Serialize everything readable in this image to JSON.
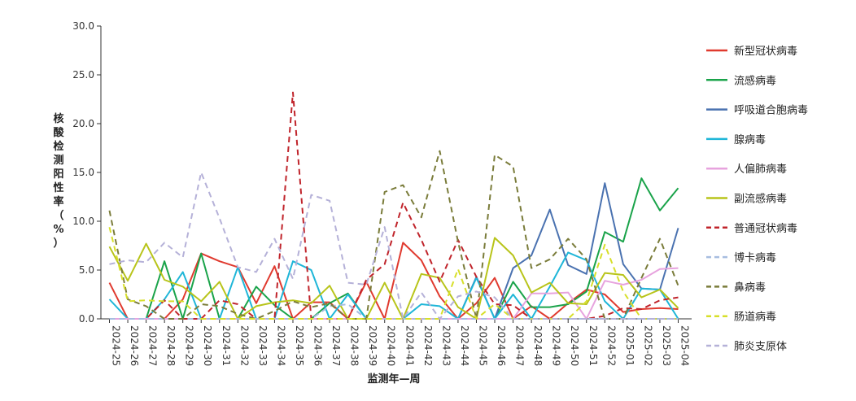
{
  "chart_data": {
    "type": "line",
    "title": "",
    "xlabel": "监测年—周",
    "ylabel": "核酸检测阳性率（%）",
    "ylim": [
      0,
      30
    ],
    "yticks": [
      "0.0",
      "5.0",
      "10.0",
      "15.0",
      "20.0",
      "25.0",
      "30.0"
    ],
    "grid": false,
    "legend_position": "right",
    "categories": [
      "2024-25",
      "2024-26",
      "2024-27",
      "2024-28",
      "2024-29",
      "2024-30",
      "2024-31",
      "2024-32",
      "2024-33",
      "2024-34",
      "2024-35",
      "2024-36",
      "2024-37",
      "2024-38",
      "2024-39",
      "2024-40",
      "2024-41",
      "2024-42",
      "2024-43",
      "2024-44",
      "2024-45",
      "2024-46",
      "2024-47",
      "2024-48",
      "2024-49",
      "2024-50",
      "2024-51",
      "2024-52",
      "2025-01",
      "2025-02",
      "2025-03",
      "2025-04"
    ],
    "series": [
      {
        "name": "新型冠状病毒",
        "color": "#e03a2f",
        "dash": "solid",
        "values": [
          3.7,
          0,
          0,
          0,
          2.0,
          6.7,
          5.9,
          5.3,
          1.6,
          5.4,
          0,
          1.7,
          1.7,
          0,
          3.8,
          0,
          7.8,
          6.0,
          2.3,
          0,
          1.6,
          4.2,
          0,
          1.3,
          0,
          1.6,
          3.0,
          2.5,
          0.7,
          1.0,
          1.1,
          1.0
        ]
      },
      {
        "name": "流感病毒",
        "color": "#1aa34a",
        "dash": "solid",
        "values": [
          0,
          0,
          0,
          5.9,
          0,
          6.7,
          0,
          0,
          3.3,
          1.4,
          0,
          0,
          1.6,
          2.6,
          0,
          0,
          0,
          0,
          0,
          0,
          0,
          0,
          3.8,
          1.2,
          1.2,
          1.5,
          2.8,
          8.9,
          7.9,
          14.4,
          11.1,
          13.4
        ]
      },
      {
        "name": "呼吸道合胞病毒",
        "color": "#4a72b0",
        "dash": "solid",
        "values": [
          0,
          0,
          0,
          0,
          0,
          0,
          0,
          0,
          0,
          0,
          0,
          0,
          0,
          0,
          0,
          0,
          0,
          0,
          0,
          0,
          4.3,
          0,
          5.2,
          6.5,
          11.2,
          5.5,
          4.6,
          13.9,
          5.6,
          3.1,
          3.0,
          9.3
        ]
      },
      {
        "name": "腺病毒",
        "color": "#1fb6d8",
        "dash": "solid",
        "values": [
          2.0,
          0,
          0,
          2.0,
          4.8,
          0,
          0,
          5.3,
          0,
          0,
          5.9,
          5.0,
          0,
          2.5,
          0,
          0,
          0,
          1.5,
          1.3,
          0,
          4.2,
          0,
          2.5,
          0,
          3.3,
          6.8,
          6.0,
          1.8,
          0,
          3.1,
          3.0,
          0
        ]
      },
      {
        "name": "人偏肺病毒",
        "color": "#e7a3de",
        "dash": "solid",
        "values": [
          0,
          0,
          0,
          0,
          0,
          0,
          0,
          0,
          0,
          0,
          0,
          0,
          0,
          0,
          0,
          0,
          0,
          0,
          0,
          0,
          0,
          0,
          0,
          2.6,
          2.6,
          2.7,
          0,
          3.9,
          3.5,
          4.0,
          5.1,
          5.2
        ]
      },
      {
        "name": "副流感病毒",
        "color": "#b8c41a",
        "dash": "solid",
        "values": [
          7.4,
          3.9,
          7.7,
          4.0,
          3.3,
          1.8,
          3.8,
          0,
          1.3,
          1.7,
          1.9,
          1.6,
          3.4,
          0,
          0,
          3.7,
          0,
          4.6,
          4.2,
          1.2,
          0,
          8.3,
          6.5,
          2.7,
          3.7,
          1.6,
          1.5,
          4.7,
          4.5,
          2.2,
          3.0,
          1.1
        ]
      },
      {
        "name": "普通冠状病毒",
        "color": "#c0242b",
        "dash": "dash",
        "values": [
          0,
          0,
          0,
          1.9,
          0,
          0,
          1.9,
          1.5,
          0,
          0,
          23.2,
          0,
          0,
          0,
          4.0,
          5.6,
          11.9,
          8.1,
          3.8,
          8.1,
          4.3,
          1.5,
          1.4,
          0,
          0,
          0,
          0,
          0.3,
          1.1,
          1.0,
          1.9,
          2.2
        ]
      },
      {
        "name": "博卡病毒",
        "color": "#a7bde0",
        "dash": "dash",
        "values": [
          0,
          0,
          0,
          0,
          0,
          0,
          0,
          0,
          0,
          0,
          0,
          0,
          1.3,
          1.5,
          0,
          0,
          0,
          0,
          0,
          0,
          0,
          0,
          0,
          0,
          0,
          0,
          0,
          0,
          0,
          0,
          0,
          0
        ]
      },
      {
        "name": "鼻病毒",
        "color": "#7a7c3a",
        "dash": "dash",
        "values": [
          11.1,
          2.0,
          1.3,
          0,
          0,
          1.5,
          1.3,
          0.5,
          0,
          0.8,
          1.8,
          1.2,
          1.6,
          0,
          0,
          13.0,
          13.7,
          10.4,
          17.2,
          7.9,
          0,
          16.8,
          15.6,
          5.2,
          6.1,
          8.2,
          6.1,
          0,
          0,
          4.2,
          8.2,
          3.4
        ]
      },
      {
        "name": "肠道病毒",
        "color": "#d7df2a",
        "dash": "dash",
        "values": [
          9.4,
          1.8,
          1.9,
          1.8,
          1.8,
          0,
          0,
          0,
          0,
          0,
          0,
          0,
          0,
          0,
          0,
          0,
          0,
          0,
          0,
          5.1,
          0,
          1.5,
          0,
          0,
          0,
          0,
          1.8,
          7.6,
          2.8,
          0,
          0,
          0
        ]
      },
      {
        "name": "肺炎支原体",
        "color": "#b5b1d8",
        "dash": "dash",
        "values": [
          5.6,
          6.0,
          5.8,
          7.8,
          6.3,
          15.0,
          10.3,
          5.3,
          4.8,
          8.2,
          4.1,
          12.7,
          12.1,
          3.7,
          3.5,
          9.4,
          0,
          2.7,
          0,
          2.3,
          2.8,
          2.2,
          0,
          0,
          0,
          0,
          0,
          0,
          0,
          0,
          0,
          0
        ]
      }
    ]
  }
}
